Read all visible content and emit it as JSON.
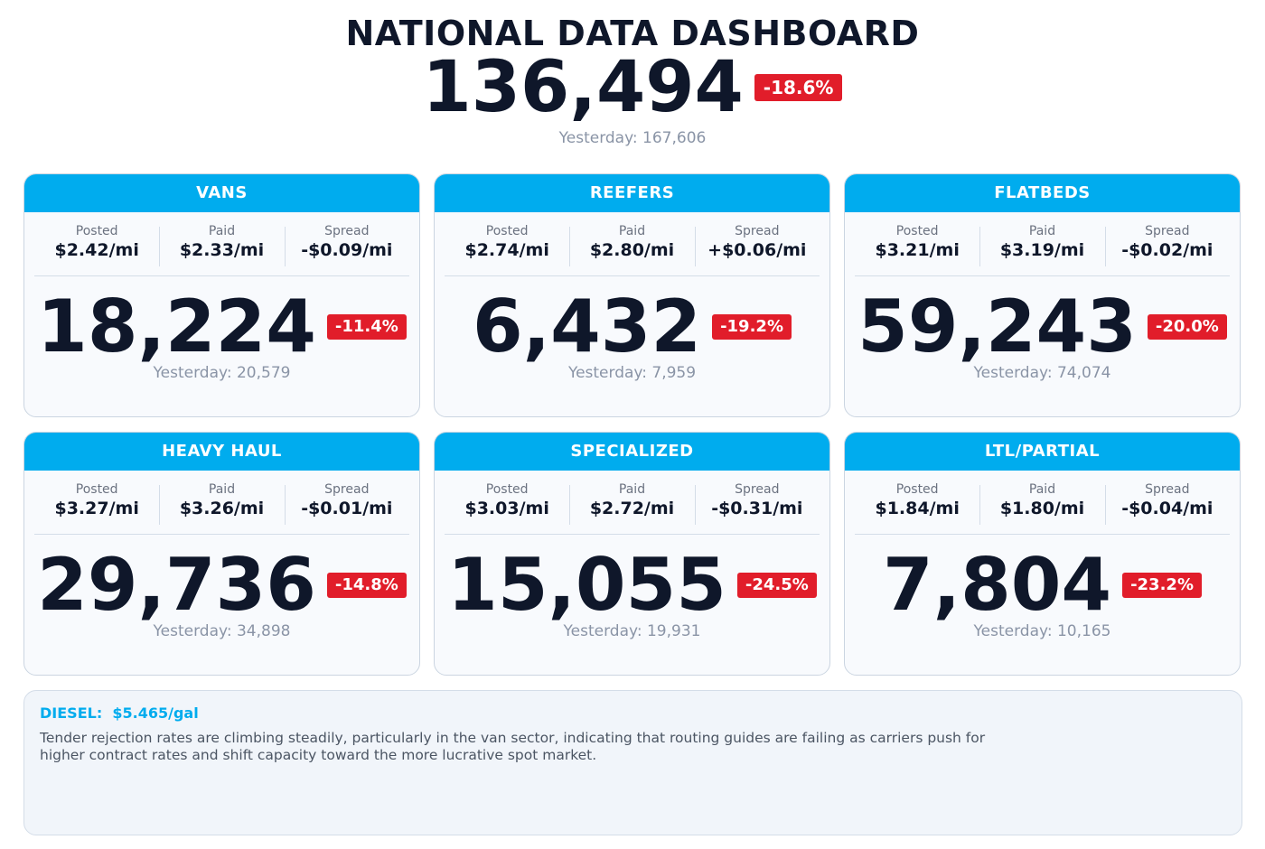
{
  "header": {
    "title": "NATIONAL DATA DASHBOARD",
    "total": "136,494",
    "change": "-18.6%",
    "yesterday": "Yesterday: 167,606"
  },
  "labels": {
    "posted": "Posted",
    "paid": "Paid",
    "spread": "Spread"
  },
  "cards": [
    {
      "title": "VANS",
      "posted": "$2.42/mi",
      "paid": "$2.33/mi",
      "spread": "-$0.09/mi",
      "count": "18,224",
      "change": "-11.4%",
      "yesterday": "Yesterday: 20,579"
    },
    {
      "title": "REEFERS",
      "posted": "$2.74/mi",
      "paid": "$2.80/mi",
      "spread": "+$0.06/mi",
      "count": "6,432",
      "change": "-19.2%",
      "yesterday": "Yesterday: 7,959"
    },
    {
      "title": "FLATBEDS",
      "posted": "$3.21/mi",
      "paid": "$3.19/mi",
      "spread": "-$0.02/mi",
      "count": "59,243",
      "change": "-20.0%",
      "yesterday": "Yesterday: 74,074"
    },
    {
      "title": "HEAVY HAUL",
      "posted": "$3.27/mi",
      "paid": "$3.26/mi",
      "spread": "-$0.01/mi",
      "count": "29,736",
      "change": "-14.8%",
      "yesterday": "Yesterday: 34,898"
    },
    {
      "title": "SPECIALIZED",
      "posted": "$3.03/mi",
      "paid": "$2.72/mi",
      "spread": "-$0.31/mi",
      "count": "15,055",
      "change": "-24.5%",
      "yesterday": "Yesterday: 19,931"
    },
    {
      "title": "LTL/PARTIAL",
      "posted": "$1.84/mi",
      "paid": "$1.80/mi",
      "spread": "-$0.04/mi",
      "count": "7,804",
      "change": "-23.2%",
      "yesterday": "Yesterday: 10,165"
    }
  ],
  "notes": {
    "diesel": "DIESEL:  $5.465/gal",
    "commentary": "Tender rejection rates are climbing steadily, particularly in the van sector, indicating that routing guides are failing as carriers push for higher contract rates and shift capacity toward the more lucrative spot market."
  },
  "colors": {
    "accent": "#00acee",
    "negative_badge": "#e11d2a",
    "text_primary": "#0f172a",
    "text_muted": "#8a94a6"
  }
}
